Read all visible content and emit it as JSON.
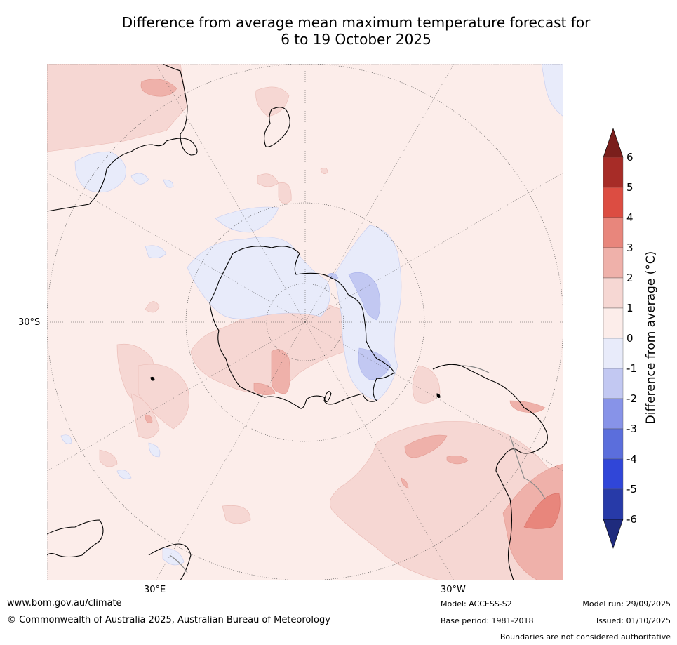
{
  "title_line1": "Difference from average mean maximum temperature forecast for",
  "title_line2": "6 to 19 October 2025",
  "map_labels": {
    "lat": "30°S",
    "lon_east": "30°E",
    "lon_west": "30°W"
  },
  "colorbar": {
    "label": "Difference from average (°C)",
    "ticks": [
      "6",
      "5",
      "4",
      "3",
      "2",
      "1",
      "0",
      "-1",
      "-2",
      "-3",
      "-4",
      "-5",
      "-6"
    ],
    "colors_top_to_bottom": [
      "#a72c27",
      "#dc4d42",
      "#e8867c",
      "#efb1aa",
      "#f6d7d3",
      "#fcedea",
      "#e8ebfa",
      "#c2c8f2",
      "#8793e8",
      "#5b6edc",
      "#3046d8",
      "#273aa8"
    ],
    "over_color": "#7a1f1c",
    "under_color": "#1f2b7d"
  },
  "footer": {
    "website": "www.bom.gov.au/climate",
    "copyright": "© Commonwealth of Australia 2025, Australian Bureau of Meteorology",
    "model": "Model: ACCESS-S2",
    "base_period": "Base period: 1981-2018",
    "model_run": "Model run: 29/09/2025",
    "issued": "Issued: 01/10/2025",
    "disclaimer": "Boundaries are not considered authoritative"
  }
}
